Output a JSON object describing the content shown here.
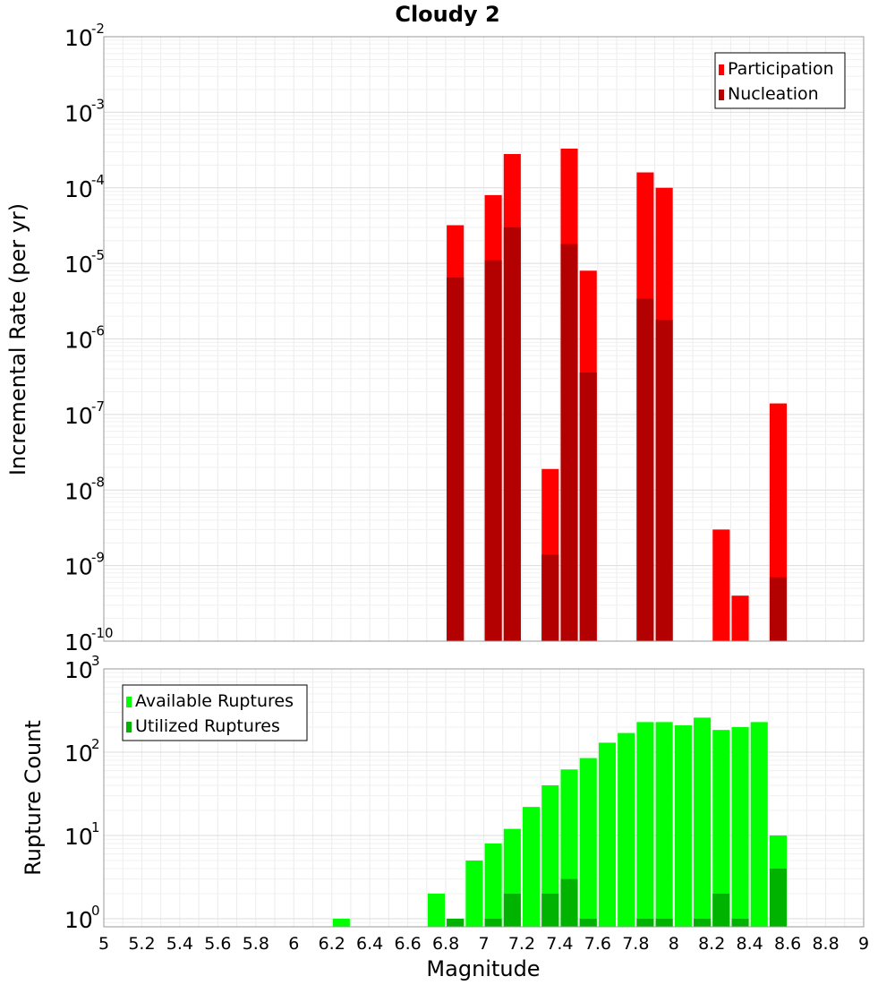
{
  "chart_data": [
    {
      "type": "bar",
      "title": "Cloudy 2",
      "xlabel": "",
      "ylabel": "Incremental Rate (per yr)",
      "yscale": "log",
      "ylim": [
        1e-10,
        0.01
      ],
      "xlim": [
        5,
        9
      ],
      "y_ticks": [
        {
          "base": "10",
          "exp": "-10"
        },
        {
          "base": "10",
          "exp": "-9"
        },
        {
          "base": "10",
          "exp": "-8"
        },
        {
          "base": "10",
          "exp": "-7"
        },
        {
          "base": "10",
          "exp": "-6"
        },
        {
          "base": "10",
          "exp": "-5"
        },
        {
          "base": "10",
          "exp": "-4"
        },
        {
          "base": "10",
          "exp": "-3"
        },
        {
          "base": "10",
          "exp": "-2"
        }
      ],
      "grid": true,
      "legend_position": "top-right",
      "series": [
        {
          "name": "Participation",
          "color": "#ff0000",
          "x": [
            6.85,
            7.05,
            7.15,
            7.35,
            7.45,
            7.55,
            7.85,
            7.95,
            8.25,
            8.35,
            8.55
          ],
          "values": [
            3.2e-05,
            8e-05,
            0.00028,
            1.9e-08,
            0.00033,
            8e-06,
            0.00016,
            0.0001,
            3e-09,
            4e-10,
            1.4e-07
          ]
        },
        {
          "name": "Nucleation",
          "color": "#b30000",
          "x": [
            6.85,
            7.05,
            7.15,
            7.35,
            7.45,
            7.55,
            7.85,
            7.95,
            8.55
          ],
          "values": [
            6.5e-06,
            1.1e-05,
            3e-05,
            1.4e-09,
            1.8e-05,
            3.6e-07,
            3.4e-06,
            1.8e-06,
            7e-10
          ]
        }
      ]
    },
    {
      "type": "bar",
      "title": "",
      "xlabel": "Magnitude",
      "ylabel": "Rupture Count",
      "yscale": "log",
      "ylim": [
        0.8,
        1000
      ],
      "xlim": [
        5,
        9
      ],
      "x_ticks": [
        "5",
        "5.2",
        "5.4",
        "5.6",
        "5.8",
        "6",
        "6.2",
        "6.4",
        "6.6",
        "6.8",
        "7",
        "7.2",
        "7.4",
        "7.6",
        "7.8",
        "8",
        "8.2",
        "8.4",
        "8.6",
        "8.8",
        "9"
      ],
      "y_ticks": [
        {
          "base": "10",
          "exp": "0"
        },
        {
          "base": "10",
          "exp": "1"
        },
        {
          "base": "10",
          "exp": "2"
        },
        {
          "base": "10",
          "exp": "3"
        }
      ],
      "grid": true,
      "legend_position": "top-left",
      "series": [
        {
          "name": "Available Ruptures",
          "color": "#00ff00",
          "x": [
            6.25,
            6.75,
            6.85,
            6.95,
            7.05,
            7.15,
            7.25,
            7.35,
            7.45,
            7.55,
            7.65,
            7.75,
            7.85,
            7.95,
            8.05,
            8.15,
            8.25,
            8.35,
            8.45,
            8.55
          ],
          "values": [
            1,
            2,
            1,
            5,
            8,
            12,
            22,
            40,
            62,
            85,
            130,
            170,
            230,
            230,
            210,
            260,
            185,
            200,
            230,
            10
          ]
        },
        {
          "name": "Utilized Ruptures",
          "color": "#00b300",
          "x": [
            6.85,
            7.05,
            7.15,
            7.35,
            7.45,
            7.55,
            7.85,
            7.95,
            8.15,
            8.25,
            8.35,
            8.55
          ],
          "values": [
            1,
            1,
            2,
            2,
            3,
            1,
            1,
            1,
            1,
            2,
            1,
            4
          ]
        }
      ]
    }
  ]
}
